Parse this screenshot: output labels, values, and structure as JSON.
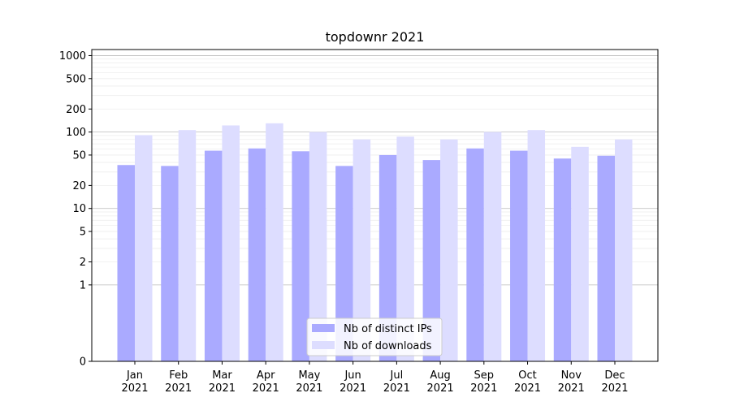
{
  "chart_data": {
    "type": "bar",
    "title": "topdownr 2021",
    "xlabel": "",
    "ylabel": "",
    "yscale": "symlog",
    "ylim": [
      0,
      1200
    ],
    "yticks": [
      0,
      1,
      2,
      5,
      10,
      20,
      50,
      100,
      200,
      500,
      1000
    ],
    "categories": [
      "Jan\n2021",
      "Feb\n2021",
      "Mar\n2021",
      "Apr\n2021",
      "May\n2021",
      "Jun\n2021",
      "Jul\n2021",
      "Aug\n2021",
      "Sep\n2021",
      "Oct\n2021",
      "Nov\n2021",
      "Dec\n2021"
    ],
    "series": [
      {
        "name": "Nb of distinct IPs",
        "color": "#aaaaff",
        "values": [
          37,
          36,
          57,
          61,
          56,
          36,
          50,
          43,
          61,
          57,
          45,
          49
        ]
      },
      {
        "name": "Nb of downloads",
        "color": "#ddddff",
        "values": [
          91,
          106,
          122,
          130,
          100,
          80,
          87,
          80,
          100,
          106,
          64,
          80
        ]
      }
    ],
    "legend_position": "lower center",
    "grid": true
  }
}
